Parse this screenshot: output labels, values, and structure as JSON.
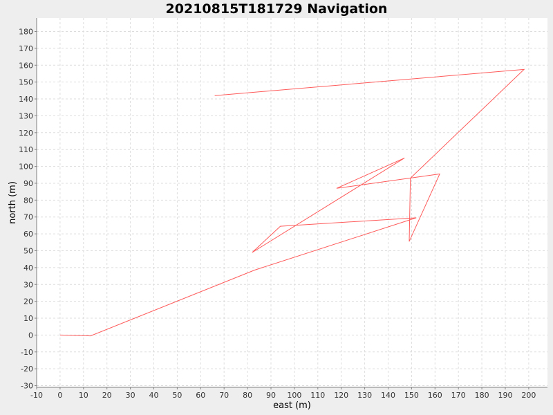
{
  "chart_data": {
    "type": "line",
    "title": "20210815T181729 Navigation",
    "xlabel": "east (m)",
    "ylabel": "north (m)",
    "xlim": [
      -10,
      208
    ],
    "ylim": [
      -31,
      188
    ],
    "x_ticks": [
      -10,
      0,
      10,
      20,
      30,
      40,
      50,
      60,
      70,
      80,
      90,
      100,
      110,
      120,
      130,
      140,
      150,
      160,
      170,
      180,
      190,
      200
    ],
    "y_ticks": [
      -30,
      -20,
      -10,
      0,
      10,
      20,
      30,
      40,
      50,
      60,
      70,
      80,
      90,
      100,
      110,
      120,
      130,
      140,
      150,
      160,
      170,
      180
    ],
    "grid": true,
    "legend": "none",
    "series": [
      {
        "color": "#ff5a5a",
        "points": [
          [
            0,
            0
          ],
          [
            13,
            -0.5
          ],
          [
            83,
            38.5
          ],
          [
            152,
            69.5
          ],
          [
            94,
            64.5
          ],
          [
            82,
            49
          ],
          [
            147,
            105
          ],
          [
            118,
            87
          ],
          [
            162,
            95.5
          ],
          [
            149,
            55.5
          ],
          [
            149.5,
            93
          ],
          [
            198,
            157.5
          ],
          [
            66,
            142
          ]
        ]
      }
    ],
    "colors": {
      "background": "#eeeeee",
      "plot_bg": "#ffffff",
      "grid": "#dddddd",
      "axis": "#808080"
    }
  }
}
